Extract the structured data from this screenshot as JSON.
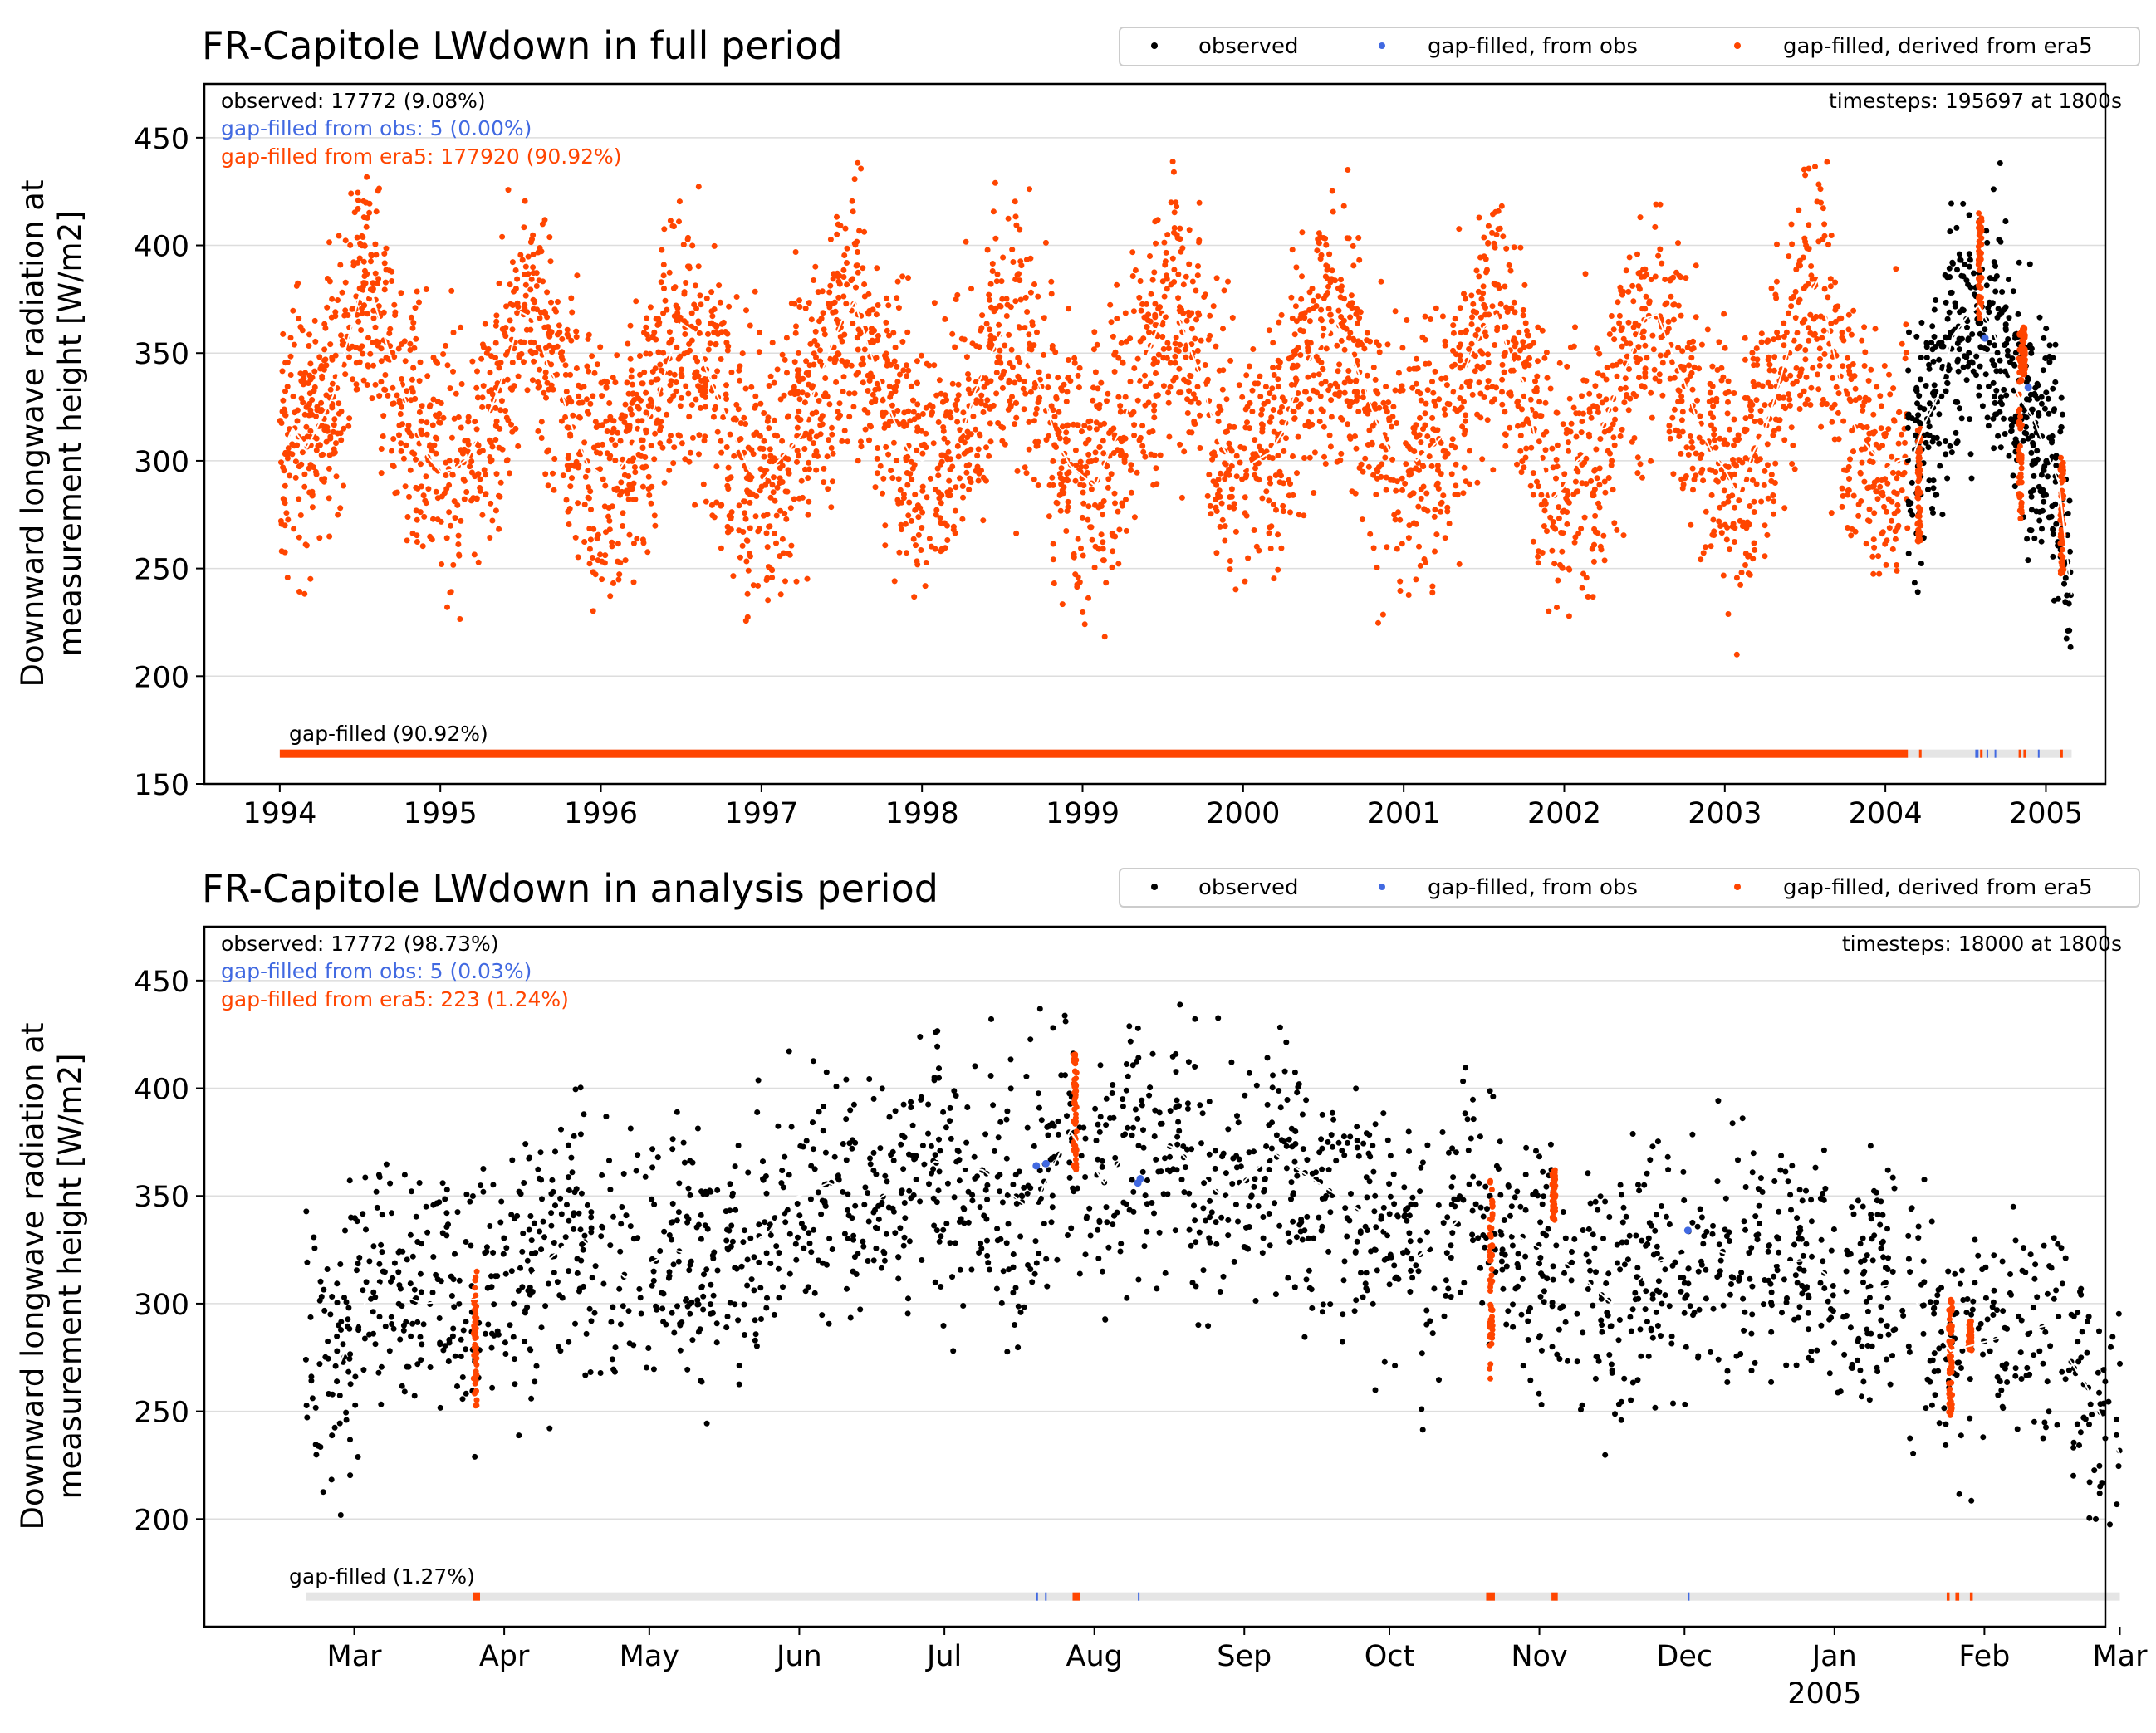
{
  "colors": {
    "observed": "#000000",
    "gap_obs": "#4169e1",
    "gap_era5": "#ff4500",
    "gapbar_bg": "#e5e5e5",
    "grid": "#dddddd",
    "mean_line": "#ffffff"
  },
  "legend": [
    "observed",
    "gap-filled, from obs",
    "gap-filled, derived from era5"
  ],
  "chart_data": [
    {
      "type": "scatter",
      "title": "FR-Capitole LWdown in full period",
      "ylabel_line1": "Downward longwave radiation at",
      "ylabel_line2": "measurement height [W/m2]",
      "ylim": [
        150,
        475
      ],
      "yticks": [
        150,
        200,
        250,
        300,
        350,
        400,
        450
      ],
      "xrange": [
        1993.53,
        2005.37
      ],
      "xticks": [
        {
          "label": "1994",
          "x": 1994
        },
        {
          "label": "1995",
          "x": 1995
        },
        {
          "label": "1996",
          "x": 1996
        },
        {
          "label": "1997",
          "x": 1997
        },
        {
          "label": "1998",
          "x": 1998
        },
        {
          "label": "1999",
          "x": 1999
        },
        {
          "label": "2000",
          "x": 2000
        },
        {
          "label": "2001",
          "x": 2001
        },
        {
          "label": "2002",
          "x": 2002
        },
        {
          "label": "2003",
          "x": 2003
        },
        {
          "label": "2004",
          "x": 2004
        },
        {
          "label": "2005",
          "x": 2005
        }
      ],
      "stats_observed": "observed: 17772 (9.08%)",
      "stats_gap_obs": "gap-filled from obs: 5 (0.00%)",
      "stats_gap_era5": "gap-filled from era5: 177920 (90.92%)",
      "timesteps": "timesteps: 195697 at 1800s",
      "gapfilled_label": "gap-filled (90.92%)",
      "grid": "horizontal",
      "legend_position": "top-right, above axes",
      "data_start": 1994.0,
      "data_end": 2005.16,
      "observed_start": 2004.14,
      "gapbar_era5_spans": [
        [
          1994.0,
          2004.14
        ],
        [
          2004.21,
          2004.22
        ],
        [
          2004.59,
          2004.6
        ],
        [
          2004.83,
          2004.84
        ],
        [
          2004.86,
          2004.87
        ],
        [
          2005.09,
          2005.1
        ]
      ],
      "gapbar_obs_ticks": [
        2004.56,
        2004.57,
        2004.63,
        2004.68,
        2004.95
      ],
      "era5_clusters": [
        {
          "x": 2004.21,
          "ymin": 262,
          "ymax": 315
        },
        {
          "x": 2004.59,
          "ymin": 365,
          "ymax": 415
        },
        {
          "x": 2004.84,
          "ymin": 270,
          "ymax": 360
        },
        {
          "x": 2004.86,
          "ymin": 340,
          "ymax": 362
        },
        {
          "x": 2005.1,
          "ymin": 247,
          "ymax": 305
        }
      ],
      "obs_gap_points": [
        {
          "x": 2004.62,
          "y": 357
        },
        {
          "x": 2004.89,
          "y": 334
        }
      ],
      "mean_line_monthly": [
        {
          "x": 1994.0,
          "y": 302
        },
        {
          "x": 1994.08,
          "y": 315
        },
        {
          "x": 1994.17,
          "y": 306
        },
        {
          "x": 1994.25,
          "y": 318
        },
        {
          "x": 1994.33,
          "y": 330
        },
        {
          "x": 1994.42,
          "y": 355
        },
        {
          "x": 1994.5,
          "y": 378
        },
        {
          "x": 1994.58,
          "y": 376
        },
        {
          "x": 1994.67,
          "y": 353
        },
        {
          "x": 1994.75,
          "y": 335
        },
        {
          "x": 1994.83,
          "y": 318
        },
        {
          "x": 1994.92,
          "y": 302
        },
        {
          "x": 1995.0,
          "y": 295
        },
        {
          "x": 1995.08,
          "y": 296
        },
        {
          "x": 1995.17,
          "y": 301
        },
        {
          "x": 1995.25,
          "y": 313
        },
        {
          "x": 1995.33,
          "y": 327
        },
        {
          "x": 1995.42,
          "y": 345
        },
        {
          "x": 1995.5,
          "y": 369
        },
        {
          "x": 1995.58,
          "y": 366
        },
        {
          "x": 1995.67,
          "y": 344
        },
        {
          "x": 1995.75,
          "y": 333
        },
        {
          "x": 1995.83,
          "y": 313
        },
        {
          "x": 1995.92,
          "y": 298
        },
        {
          "x": 1996.0,
          "y": 294
        },
        {
          "x": 1996.08,
          "y": 292
        },
        {
          "x": 1996.17,
          "y": 302
        },
        {
          "x": 1996.25,
          "y": 315
        },
        {
          "x": 1996.33,
          "y": 324
        },
        {
          "x": 1996.42,
          "y": 346
        },
        {
          "x": 1996.5,
          "y": 364
        },
        {
          "x": 1996.58,
          "y": 360
        },
        {
          "x": 1996.67,
          "y": 339
        },
        {
          "x": 1996.75,
          "y": 326
        },
        {
          "x": 1996.83,
          "y": 312
        },
        {
          "x": 1996.92,
          "y": 296
        },
        {
          "x": 1997.0,
          "y": 290
        },
        {
          "x": 1997.08,
          "y": 298
        },
        {
          "x": 1997.17,
          "y": 305
        },
        {
          "x": 1997.25,
          "y": 312
        },
        {
          "x": 1997.33,
          "y": 332
        },
        {
          "x": 1997.42,
          "y": 350
        },
        {
          "x": 1997.5,
          "y": 365
        },
        {
          "x": 1997.58,
          "y": 374
        },
        {
          "x": 1997.67,
          "y": 352
        },
        {
          "x": 1997.75,
          "y": 334
        },
        {
          "x": 1997.83,
          "y": 318
        },
        {
          "x": 1997.92,
          "y": 304
        },
        {
          "x": 1998.0,
          "y": 300
        },
        {
          "x": 1998.08,
          "y": 303
        },
        {
          "x": 1998.17,
          "y": 307
        },
        {
          "x": 1998.25,
          "y": 313
        },
        {
          "x": 1998.33,
          "y": 332
        },
        {
          "x": 1998.42,
          "y": 348
        },
        {
          "x": 1998.5,
          "y": 360
        },
        {
          "x": 1998.58,
          "y": 363
        },
        {
          "x": 1998.67,
          "y": 345
        },
        {
          "x": 1998.75,
          "y": 332
        },
        {
          "x": 1998.83,
          "y": 311
        },
        {
          "x": 1998.92,
          "y": 298
        },
        {
          "x": 1999.0,
          "y": 293
        },
        {
          "x": 1999.08,
          "y": 288
        },
        {
          "x": 1999.17,
          "y": 305
        },
        {
          "x": 1999.25,
          "y": 316
        },
        {
          "x": 1999.33,
          "y": 336
        },
        {
          "x": 1999.42,
          "y": 352
        },
        {
          "x": 1999.5,
          "y": 368
        },
        {
          "x": 1999.58,
          "y": 370
        },
        {
          "x": 1999.67,
          "y": 352
        },
        {
          "x": 1999.75,
          "y": 336
        },
        {
          "x": 1999.83,
          "y": 312
        },
        {
          "x": 1999.92,
          "y": 300
        },
        {
          "x": 2000.0,
          "y": 296
        },
        {
          "x": 2000.08,
          "y": 300
        },
        {
          "x": 2000.17,
          "y": 304
        },
        {
          "x": 2000.25,
          "y": 314
        },
        {
          "x": 2000.33,
          "y": 333
        },
        {
          "x": 2000.42,
          "y": 348
        },
        {
          "x": 2000.5,
          "y": 356
        },
        {
          "x": 2000.58,
          "y": 365
        },
        {
          "x": 2000.67,
          "y": 350
        },
        {
          "x": 2000.75,
          "y": 335
        },
        {
          "x": 2000.83,
          "y": 318
        },
        {
          "x": 2000.92,
          "y": 303
        },
        {
          "x": 2001.0,
          "y": 305
        },
        {
          "x": 2001.08,
          "y": 300
        },
        {
          "x": 2001.17,
          "y": 306
        },
        {
          "x": 2001.25,
          "y": 312
        },
        {
          "x": 2001.33,
          "y": 332
        },
        {
          "x": 2001.42,
          "y": 350
        },
        {
          "x": 2001.5,
          "y": 362
        },
        {
          "x": 2001.58,
          "y": 368
        },
        {
          "x": 2001.67,
          "y": 347
        },
        {
          "x": 2001.75,
          "y": 336
        },
        {
          "x": 2001.83,
          "y": 306
        },
        {
          "x": 2001.92,
          "y": 282
        },
        {
          "x": 2002.0,
          "y": 288
        },
        {
          "x": 2002.08,
          "y": 300
        },
        {
          "x": 2002.17,
          "y": 306
        },
        {
          "x": 2002.25,
          "y": 318
        },
        {
          "x": 2002.33,
          "y": 334
        },
        {
          "x": 2002.42,
          "y": 350
        },
        {
          "x": 2002.5,
          "y": 366
        },
        {
          "x": 2002.58,
          "y": 368
        },
        {
          "x": 2002.67,
          "y": 350
        },
        {
          "x": 2002.75,
          "y": 336
        },
        {
          "x": 2002.83,
          "y": 318
        },
        {
          "x": 2002.92,
          "y": 304
        },
        {
          "x": 2003.0,
          "y": 296
        },
        {
          "x": 2003.08,
          "y": 284
        },
        {
          "x": 2003.17,
          "y": 303
        },
        {
          "x": 2003.25,
          "y": 314
        },
        {
          "x": 2003.33,
          "y": 334
        },
        {
          "x": 2003.42,
          "y": 358
        },
        {
          "x": 2003.5,
          "y": 373
        },
        {
          "x": 2003.58,
          "y": 384
        },
        {
          "x": 2003.67,
          "y": 353
        },
        {
          "x": 2003.75,
          "y": 328
        },
        {
          "x": 2003.83,
          "y": 312
        },
        {
          "x": 2003.92,
          "y": 304
        },
        {
          "x": 2004.0,
          "y": 296
        },
        {
          "x": 2004.08,
          "y": 300
        },
        {
          "x": 2004.17,
          "y": 302
        },
        {
          "x": 2004.25,
          "y": 318
        },
        {
          "x": 2004.33,
          "y": 330
        },
        {
          "x": 2004.42,
          "y": 358
        },
        {
          "x": 2004.5,
          "y": 366
        },
        {
          "x": 2004.58,
          "y": 372
        },
        {
          "x": 2004.67,
          "y": 360
        },
        {
          "x": 2004.75,
          "y": 345
        },
        {
          "x": 2004.83,
          "y": 330
        },
        {
          "x": 2004.92,
          "y": 320
        },
        {
          "x": 2005.0,
          "y": 305
        },
        {
          "x": 2005.08,
          "y": 290
        },
        {
          "x": 2005.16,
          "y": 238
        }
      ]
    },
    {
      "type": "scatter",
      "title": "FR-Capitole LWdown in analysis period",
      "ylabel_line1": "Downward longwave radiation at",
      "ylabel_line2": "measurement height [W/m2]",
      "ylim": [
        150,
        475
      ],
      "yticks": [
        200,
        250,
        300,
        350,
        400,
        450
      ],
      "xrange": [
        -21.0,
        372.0
      ],
      "xticks": [
        {
          "label": "Mar",
          "x": 10
        },
        {
          "label": "Apr",
          "x": 41
        },
        {
          "label": "May",
          "x": 71
        },
        {
          "label": "Jun",
          "x": 102
        },
        {
          "label": "Jul",
          "x": 132
        },
        {
          "label": "Aug",
          "x": 163
        },
        {
          "label": "Sep",
          "x": 194
        },
        {
          "label": "Oct",
          "x": 224
        },
        {
          "label": "Nov",
          "x": 255
        },
        {
          "label": "Dec",
          "x": 285
        },
        {
          "label": "Jan",
          "x": 316,
          "sublabel": "2005"
        },
        {
          "label": "Feb",
          "x": 347
        },
        {
          "label": "Mar",
          "x": 375
        }
      ],
      "stats_observed": "observed: 17772 (98.73%)",
      "stats_gap_obs": "gap-filled from obs: 5 (0.03%)",
      "stats_gap_era5": "gap-filled from era5: 223 (1.24%)",
      "timesteps": "timesteps: 18000 at 1800s",
      "gapfilled_label": "gap-filled (1.27%)",
      "grid": "horizontal",
      "legend_position": "top-right, above axes",
      "data_start": 0,
      "data_end": 375,
      "observed_start": 0,
      "gapbar_era5_spans": [
        [
          34.5,
          36.0
        ],
        [
          158.5,
          160.0
        ],
        [
          244.0,
          245.8
        ],
        [
          257.5,
          258.8
        ],
        [
          339.2,
          339.8
        ],
        [
          341.0,
          341.8
        ],
        [
          344.0,
          344.6
        ]
      ],
      "gapbar_obs_ticks": [
        151.0,
        152.8,
        172.0,
        285.7
      ],
      "era5_clusters": [
        {
          "x": 35,
          "ymin": 252,
          "ymax": 315
        },
        {
          "x": 159,
          "ymin": 362,
          "ymax": 416
        },
        {
          "x": 245,
          "ymin": 265,
          "ymax": 358
        },
        {
          "x": 258,
          "ymin": 338,
          "ymax": 362
        },
        {
          "x": 340,
          "ymin": 248,
          "ymax": 302
        },
        {
          "x": 344,
          "ymin": 278,
          "ymax": 292
        }
      ],
      "obs_gap_points": [
        {
          "x": 151,
          "y": 364
        },
        {
          "x": 153,
          "y": 365
        },
        {
          "x": 172,
          "y": 356
        },
        {
          "x": 172.5,
          "y": 358
        },
        {
          "x": 285.7,
          "y": 334
        }
      ],
      "mean_line_weekly": [
        {
          "x": 0,
          "y": 290
        },
        {
          "x": 7,
          "y": 272
        },
        {
          "x": 14,
          "y": 310
        },
        {
          "x": 24,
          "y": 300
        },
        {
          "x": 35,
          "y": 302
        },
        {
          "x": 45,
          "y": 310
        },
        {
          "x": 56,
          "y": 332
        },
        {
          "x": 66,
          "y": 312
        },
        {
          "x": 76,
          "y": 325
        },
        {
          "x": 86,
          "y": 318
        },
        {
          "x": 96,
          "y": 334
        },
        {
          "x": 100,
          "y": 348
        },
        {
          "x": 108,
          "y": 356
        },
        {
          "x": 118,
          "y": 348
        },
        {
          "x": 130,
          "y": 366
        },
        {
          "x": 140,
          "y": 362
        },
        {
          "x": 150,
          "y": 343
        },
        {
          "x": 158,
          "y": 380
        },
        {
          "x": 165,
          "y": 356
        },
        {
          "x": 172,
          "y": 378
        },
        {
          "x": 180,
          "y": 372
        },
        {
          "x": 190,
          "y": 348
        },
        {
          "x": 200,
          "y": 370
        },
        {
          "x": 210,
          "y": 355
        },
        {
          "x": 220,
          "y": 340
        },
        {
          "x": 230,
          "y": 322
        },
        {
          "x": 240,
          "y": 342
        },
        {
          "x": 250,
          "y": 332
        },
        {
          "x": 260,
          "y": 320
        },
        {
          "x": 270,
          "y": 300
        },
        {
          "x": 280,
          "y": 320
        },
        {
          "x": 290,
          "y": 326
        },
        {
          "x": 300,
          "y": 318
        },
        {
          "x": 310,
          "y": 320
        },
        {
          "x": 320,
          "y": 305
        },
        {
          "x": 330,
          "y": 310
        },
        {
          "x": 340,
          "y": 278
        },
        {
          "x": 350,
          "y": 284
        },
        {
          "x": 360,
          "y": 290
        },
        {
          "x": 368,
          "y": 262
        },
        {
          "x": 375,
          "y": 230
        }
      ]
    }
  ]
}
